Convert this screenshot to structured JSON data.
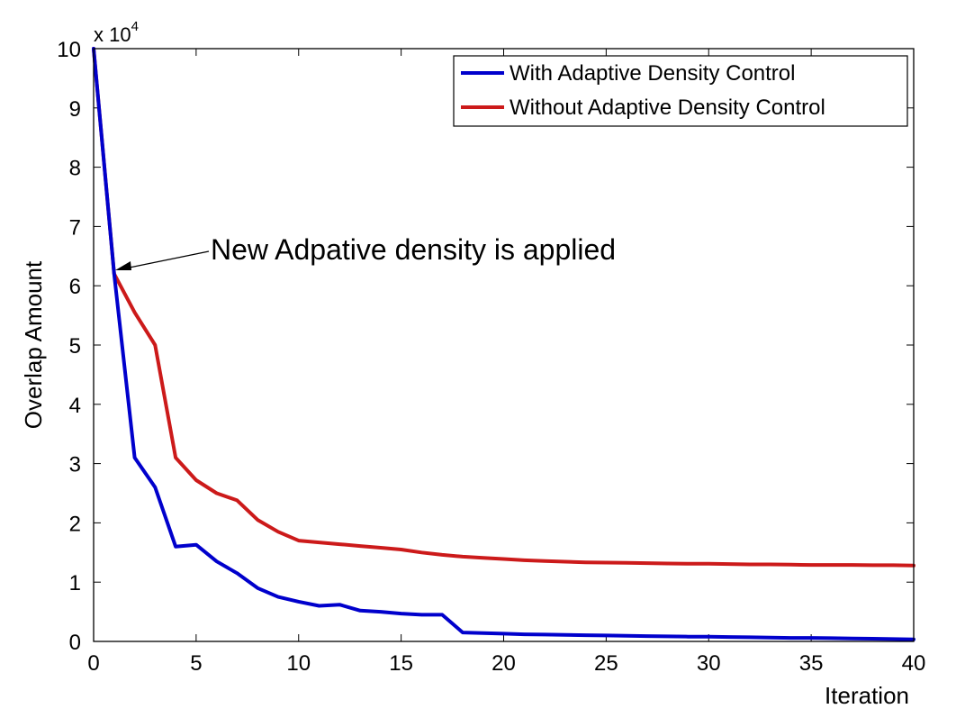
{
  "chart_data": {
    "type": "line",
    "title": "",
    "xlabel": "Iteration",
    "ylabel": "Overlap Amount",
    "y_exponent_label": "x 10",
    "y_exponent_power": "4",
    "y_scale_factor": 10000,
    "xlim": [
      0,
      40
    ],
    "ylim": [
      0,
      100000
    ],
    "x_ticks": [
      0,
      5,
      10,
      15,
      20,
      25,
      30,
      35,
      40
    ],
    "y_ticks": [
      0,
      10000,
      20000,
      30000,
      40000,
      50000,
      60000,
      70000,
      80000,
      90000,
      100000
    ],
    "y_tick_labels": [
      "0",
      "1",
      "2",
      "3",
      "4",
      "5",
      "6",
      "7",
      "8",
      "9",
      "10"
    ],
    "grid": false,
    "legend_position": "top-right",
    "series": [
      {
        "name": "With Adaptive Density Control",
        "color": "#0000cc",
        "x": [
          0,
          1,
          2,
          3,
          4,
          5,
          6,
          7,
          8,
          9,
          10,
          11,
          12,
          13,
          14,
          15,
          16,
          17,
          18,
          19,
          20,
          21,
          22,
          23,
          24,
          25,
          26,
          27,
          28,
          29,
          30,
          31,
          32,
          33,
          34,
          35,
          36,
          37,
          38,
          39,
          40
        ],
        "values": [
          100000,
          62000,
          31000,
          26000,
          16000,
          16300,
          13500,
          11500,
          9000,
          7500,
          6700,
          6000,
          6200,
          5200,
          5000,
          4700,
          4500,
          4500,
          1500,
          1400,
          1300,
          1200,
          1150,
          1100,
          1050,
          1000,
          950,
          900,
          850,
          800,
          800,
          750,
          700,
          650,
          600,
          600,
          550,
          500,
          450,
          400,
          350
        ]
      },
      {
        "name": "Without Adaptive Density Control",
        "color": "#cc1a1a",
        "x": [
          0,
          1,
          2,
          3,
          4,
          5,
          6,
          7,
          8,
          9,
          10,
          11,
          12,
          13,
          14,
          15,
          16,
          17,
          18,
          19,
          20,
          21,
          22,
          23,
          24,
          25,
          26,
          27,
          28,
          29,
          30,
          31,
          32,
          33,
          34,
          35,
          36,
          37,
          38,
          39,
          40
        ],
        "values": [
          100000,
          62000,
          55500,
          50000,
          31000,
          27200,
          25000,
          23800,
          20500,
          18500,
          17000,
          16700,
          16400,
          16100,
          15800,
          15500,
          15000,
          14600,
          14300,
          14100,
          13900,
          13700,
          13550,
          13450,
          13350,
          13300,
          13250,
          13200,
          13150,
          13100,
          13100,
          13050,
          13000,
          13000,
          12950,
          12900,
          12900,
          12900,
          12850,
          12850,
          12800
        ]
      }
    ],
    "annotation": {
      "text": "New Adpative density is applied",
      "point_x": 1,
      "point_y": 62000
    }
  }
}
